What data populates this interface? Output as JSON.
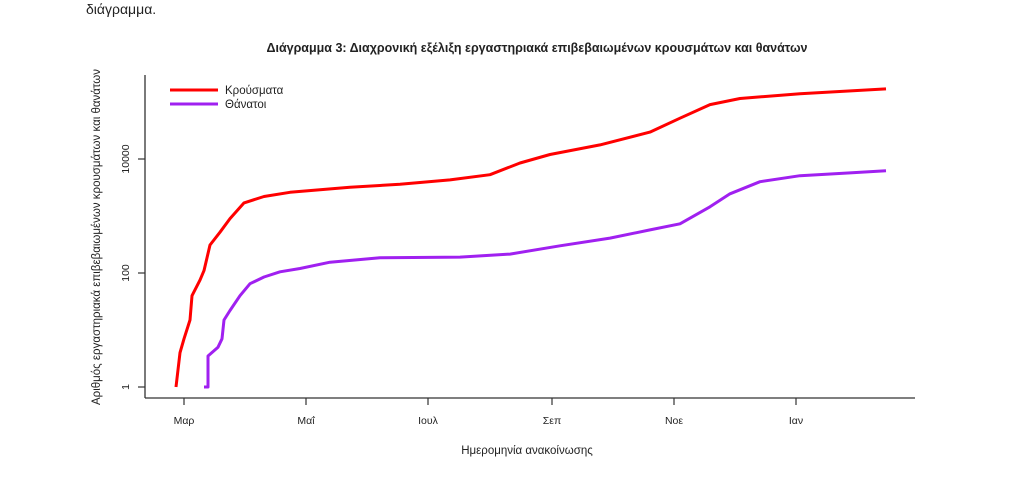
{
  "page": {
    "top_text": "διάγραμμα."
  },
  "chart_data": {
    "type": "line",
    "title": "Διάγραμμα 3: Διαχρονική εξέλιξη εργαστηριακά επιβεβαιωμένων κρουσμάτων και θανάτων",
    "xlabel": "Ημερομηνία ανακοίνωσης",
    "ylabel": "Αριθμός εργαστηριακά επιβεβαιωμένων κρουσμάτων και θανάτων",
    "y_scale": "log",
    "ylim": [
      1,
      200000
    ],
    "y_ticks": [
      {
        "value": 1,
        "label": "1"
      },
      {
        "value": 100,
        "label": "100"
      },
      {
        "value": 10000,
        "label": "10000"
      }
    ],
    "x_ticks": [
      {
        "date": "2020-03-01",
        "label": "Μαρ"
      },
      {
        "date": "2020-05-01",
        "label": "Μαΐ"
      },
      {
        "date": "2020-07-01",
        "label": "Ιουλ"
      },
      {
        "date": "2020-09-01",
        "label": "Σεπ"
      },
      {
        "date": "2020-11-01",
        "label": "Νοε"
      },
      {
        "date": "2021-01-01",
        "label": "Ιαν"
      }
    ],
    "grid": false,
    "legend_position": "top-left",
    "series": [
      {
        "name": "Κρούσματα",
        "color": "#ff0000",
        "points": [
          [
            "2020-02-26",
            1
          ],
          [
            "2020-02-28",
            4
          ],
          [
            "2020-03-01",
            7
          ],
          [
            "2020-03-04",
            15
          ],
          [
            "2020-03-05",
            40
          ],
          [
            "2020-03-09",
            75
          ],
          [
            "2020-03-11",
            110
          ],
          [
            "2020-03-14",
            310
          ],
          [
            "2020-03-19",
            520
          ],
          [
            "2020-03-24",
            900
          ],
          [
            "2020-03-31",
            1700
          ],
          [
            "2020-04-10",
            2200
          ],
          [
            "2020-04-23",
            2600
          ],
          [
            "2020-05-23",
            3200
          ],
          [
            "2020-06-17",
            3600
          ],
          [
            "2020-07-12",
            4300
          ],
          [
            "2020-08-01",
            5300
          ],
          [
            "2020-08-16",
            8500
          ],
          [
            "2020-08-31",
            12000
          ],
          [
            "2020-09-25",
            17700
          ],
          [
            "2020-10-20",
            29700
          ],
          [
            "2020-11-04",
            52000
          ],
          [
            "2020-11-19",
            90000
          ],
          [
            "2020-12-04",
            115000
          ],
          [
            "2021-01-03",
            140000
          ],
          [
            "2021-02-15",
            170000
          ]
        ]
      },
      {
        "name": "Θάνατοι",
        "color": "#a020f0",
        "points": [
          [
            "2020-03-11",
            1
          ],
          [
            "2020-03-13",
            1
          ],
          [
            "2020-03-13",
            3.5
          ],
          [
            "2020-03-18",
            5
          ],
          [
            "2020-03-20",
            7
          ],
          [
            "2020-03-21",
            15
          ],
          [
            "2020-03-24",
            22
          ],
          [
            "2020-03-29",
            40
          ],
          [
            "2020-04-03",
            65
          ],
          [
            "2020-04-10",
            85
          ],
          [
            "2020-04-18",
            105
          ],
          [
            "2020-04-28",
            120
          ],
          [
            "2020-05-13",
            155
          ],
          [
            "2020-06-07",
            185
          ],
          [
            "2020-07-17",
            190
          ],
          [
            "2020-08-11",
            215
          ],
          [
            "2020-09-05",
            300
          ],
          [
            "2020-09-30",
            410
          ],
          [
            "2020-10-20",
            570
          ],
          [
            "2020-11-04",
            730
          ],
          [
            "2020-11-19",
            1450
          ],
          [
            "2020-11-29",
            2450
          ],
          [
            "2020-12-14",
            4000
          ],
          [
            "2021-01-03",
            5100
          ],
          [
            "2021-01-28",
            5700
          ],
          [
            "2021-02-15",
            6200
          ]
        ]
      }
    ]
  }
}
